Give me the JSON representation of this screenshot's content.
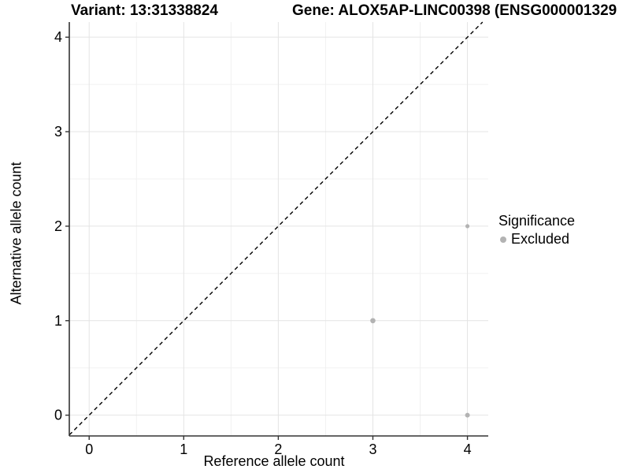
{
  "chart_data": {
    "type": "scatter",
    "title_variant": "Variant: 13:31338824",
    "title_gene": "Gene: ALOX5AP-LINC00398 (ENSG000001329",
    "xlabel": "Reference allele count",
    "ylabel": "Alternative allele count",
    "xlim": [
      -0.21,
      4.22
    ],
    "ylim": [
      -0.22,
      4.16
    ],
    "xticks": [
      0,
      1,
      2,
      3,
      4
    ],
    "yticks": [
      0,
      1,
      2,
      3,
      4
    ],
    "grid": {
      "major": true,
      "minor": true
    },
    "series": [
      {
        "name": "Excluded",
        "color": "#b3b3b3",
        "points": [
          {
            "x": 4,
            "y": 2,
            "r": 2.6
          },
          {
            "x": 3,
            "y": 1,
            "r": 3.3
          },
          {
            "x": 4,
            "y": 0,
            "r": 3.0
          }
        ]
      }
    ],
    "reference_line": {
      "equation": "y = x",
      "style": "dashed",
      "color": "#000000"
    },
    "legend": {
      "position": "right",
      "title": "Significance",
      "items": [
        {
          "label": "Excluded",
          "color": "#b3b3b3"
        }
      ]
    },
    "colors": {
      "grid_major": "#e4e4e4",
      "grid_minor": "#f1f1f1",
      "axis": "#333333",
      "text": "#000000"
    }
  }
}
